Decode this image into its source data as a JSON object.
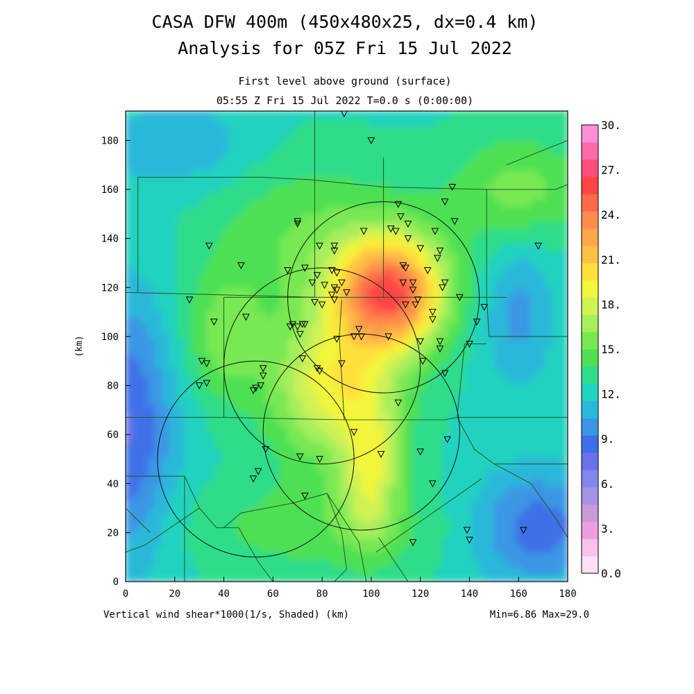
{
  "title_line1": "CASA DFW 400m (450x480x25, dx=0.4 km)",
  "title_line2": "Analysis for 05Z Fri 15 Jul 2022",
  "subtitle_line1": "First level above ground (surface)",
  "subtitle_line2": "05:55 Z Fri 15 Jul 2022   T=0.0 s (0:00:00)",
  "footer_left": "Vertical wind shear*1000(1/s, Shaded)  (km)",
  "footer_right": "Min=6.86 Max=29.0",
  "y_axis_unit": "(km)",
  "colors": {
    "scale": [
      "#fde0f4",
      "#f7c2ec",
      "#ee9ce0",
      "#c89ad8",
      "#a392e6",
      "#8486ec",
      "#6a72ea",
      "#3f6fe8",
      "#3a96e4",
      "#2ab8da",
      "#22d2c0",
      "#2fdc8a",
      "#4ee052",
      "#78e852",
      "#a5ee5c",
      "#cff254",
      "#f2f53a",
      "#ffe03a",
      "#ffc044",
      "#ffa54a",
      "#ff8c4c",
      "#ff6a48",
      "#ff4444",
      "#ff4e7c",
      "#ff6aa8",
      "#ff8ed8"
    ]
  },
  "chart_data": {
    "type": "heatmap",
    "title": "CASA DFW 400m (450x480x25, dx=0.4 km)",
    "xlabel": "(km)",
    "ylabel": "(km)",
    "xlim": [
      0,
      180
    ],
    "ylim": [
      0,
      192
    ],
    "x_ticks": [
      "0",
      "20",
      "40",
      "60",
      "80",
      "100",
      "120",
      "140",
      "160",
      "180"
    ],
    "y_ticks": [
      "0",
      "20",
      "40",
      "60",
      "80",
      "100",
      "120",
      "140",
      "160",
      "180"
    ],
    "field_min": 6.86,
    "field_max": 29.0,
    "colorbar_labels": [
      "0.0",
      "3.",
      "6.",
      "9.",
      "12.",
      "15.",
      "18.",
      "21.",
      "24.",
      "27.",
      "30."
    ],
    "colorbar_range": [
      0,
      30
    ],
    "radar_rings": [
      {
        "x": 105,
        "y": 116,
        "r": 39
      },
      {
        "x": 80,
        "y": 88,
        "r": 40
      },
      {
        "x": 96,
        "y": 61,
        "r": 40
      },
      {
        "x": 53,
        "y": 50,
        "r": 40
      }
    ],
    "stations": [
      [
        89,
        191
      ],
      [
        100,
        180
      ],
      [
        133,
        161
      ],
      [
        111,
        154
      ],
      [
        130,
        155
      ],
      [
        70,
        147
      ],
      [
        70,
        146
      ],
      [
        112,
        149
      ],
      [
        115,
        146
      ],
      [
        134,
        147
      ],
      [
        108,
        144
      ],
      [
        97,
        143
      ],
      [
        110,
        143
      ],
      [
        126,
        143
      ],
      [
        115,
        140
      ],
      [
        34,
        137
      ],
      [
        79,
        137
      ],
      [
        85,
        137
      ],
      [
        85,
        135
      ],
      [
        120,
        136
      ],
      [
        128,
        135
      ],
      [
        168,
        137
      ],
      [
        47,
        129
      ],
      [
        127,
        132
      ],
      [
        113,
        129
      ],
      [
        114,
        128
      ],
      [
        66,
        127
      ],
      [
        73,
        128
      ],
      [
        84,
        127
      ],
      [
        78,
        125
      ],
      [
        86,
        126
      ],
      [
        123,
        127
      ],
      [
        88,
        122
      ],
      [
        76,
        122
      ],
      [
        81,
        121
      ],
      [
        85,
        120
      ],
      [
        86,
        119
      ],
      [
        84,
        117
      ],
      [
        90,
        118
      ],
      [
        117,
        119
      ],
      [
        129,
        120
      ],
      [
        130,
        122
      ],
      [
        113,
        122
      ],
      [
        117,
        122
      ],
      [
        119,
        115
      ],
      [
        136,
        116
      ],
      [
        26,
        115
      ],
      [
        85,
        115
      ],
      [
        77,
        114
      ],
      [
        80,
        113
      ],
      [
        114,
        113
      ],
      [
        118,
        113
      ],
      [
        146,
        112
      ],
      [
        125,
        110
      ],
      [
        125,
        107
      ],
      [
        143,
        106
      ],
      [
        36,
        106
      ],
      [
        49,
        108
      ],
      [
        73,
        105
      ],
      [
        70,
        104
      ],
      [
        68,
        105
      ],
      [
        67,
        104
      ],
      [
        72,
        105
      ],
      [
        95,
        103
      ],
      [
        71,
        101
      ],
      [
        93,
        100
      ],
      [
        96,
        100
      ],
      [
        86,
        99
      ],
      [
        107,
        100
      ],
      [
        120,
        98
      ],
      [
        128,
        98
      ],
      [
        140,
        97
      ],
      [
        128,
        95
      ],
      [
        88,
        89
      ],
      [
        72,
        91
      ],
      [
        31,
        90
      ],
      [
        33,
        89
      ],
      [
        56,
        87
      ],
      [
        78,
        87
      ],
      [
        79,
        86
      ],
      [
        121,
        90
      ],
      [
        56,
        84
      ],
      [
        130,
        85
      ],
      [
        33,
        81
      ],
      [
        30,
        80
      ],
      [
        53,
        79
      ],
      [
        55,
        80
      ],
      [
        52,
        78
      ],
      [
        111,
        73
      ],
      [
        93,
        61
      ],
      [
        131,
        58
      ],
      [
        57,
        54
      ],
      [
        120,
        53
      ],
      [
        71,
        51
      ],
      [
        79,
        50
      ],
      [
        104,
        52
      ],
      [
        54,
        45
      ],
      [
        52,
        42
      ],
      [
        125,
        40
      ],
      [
        73,
        35
      ],
      [
        139,
        21
      ],
      [
        162,
        21
      ],
      [
        140,
        17
      ],
      [
        117,
        16
      ]
    ]
  }
}
